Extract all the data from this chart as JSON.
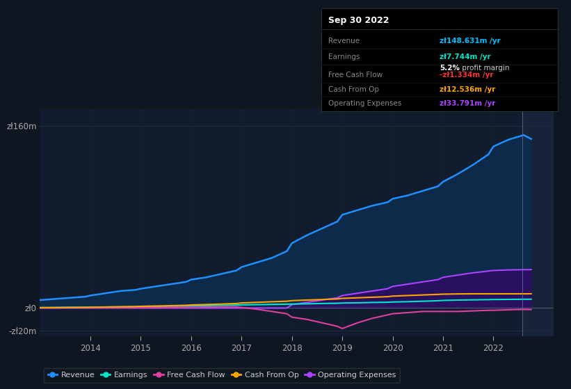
{
  "bg_color": "#0e1621",
  "plot_bg_color": "#0d1a2d",
  "chart_bg_color": "#111c2e",
  "ylim": [
    -25,
    175
  ],
  "xlim_start": 2013.0,
  "xlim_end": 2023.2,
  "xticks": [
    2014,
    2015,
    2016,
    2017,
    2018,
    2019,
    2020,
    2021,
    2022
  ],
  "ytick_vals": [
    -20,
    0,
    160
  ],
  "ytick_labels": [
    "-zł20m",
    "zł0",
    "zł160m"
  ],
  "legend": [
    {
      "label": "Revenue",
      "color": "#1e90ff"
    },
    {
      "label": "Earnings",
      "color": "#00e5cc"
    },
    {
      "label": "Free Cash Flow",
      "color": "#e040a0"
    },
    {
      "label": "Cash From Op",
      "color": "#ffa500"
    },
    {
      "label": "Operating Expenses",
      "color": "#aa44ff"
    }
  ],
  "series": {
    "years": [
      2013.0,
      2013.3,
      2013.6,
      2013.9,
      2014.0,
      2014.3,
      2014.6,
      2014.9,
      2015.0,
      2015.3,
      2015.6,
      2015.9,
      2016.0,
      2016.3,
      2016.6,
      2016.9,
      2017.0,
      2017.3,
      2017.6,
      2017.9,
      2018.0,
      2018.3,
      2018.6,
      2018.9,
      2019.0,
      2019.3,
      2019.6,
      2019.9,
      2020.0,
      2020.3,
      2020.6,
      2020.9,
      2021.0,
      2021.3,
      2021.6,
      2021.9,
      2022.0,
      2022.3,
      2022.6,
      2022.75
    ],
    "revenue": [
      7,
      8,
      9,
      10,
      11,
      13,
      15,
      16,
      17,
      19,
      21,
      23,
      25,
      27,
      30,
      33,
      36,
      40,
      44,
      50,
      57,
      64,
      70,
      76,
      82,
      86,
      90,
      93,
      96,
      99,
      103,
      107,
      111,
      118,
      126,
      135,
      142,
      148,
      152,
      148.631
    ],
    "earnings": [
      0.4,
      0.5,
      0.6,
      0.7,
      0.8,
      0.9,
      1.0,
      1.1,
      1.2,
      1.4,
      1.6,
      1.8,
      2.0,
      2.2,
      2.4,
      2.6,
      2.8,
      3.0,
      3.2,
      3.4,
      3.5,
      3.7,
      4.0,
      4.2,
      4.4,
      4.6,
      4.9,
      5.1,
      5.3,
      5.6,
      6.0,
      6.4,
      6.7,
      7.0,
      7.2,
      7.4,
      7.5,
      7.6,
      7.7,
      7.744
    ],
    "free_cash_flow": [
      0.2,
      0.2,
      0.3,
      0.3,
      0.3,
      0.4,
      0.4,
      0.4,
      0.5,
      0.5,
      0.6,
      0.6,
      0.7,
      0.8,
      0.9,
      1.0,
      0.5,
      -1.0,
      -3,
      -5,
      -8,
      -10,
      -13,
      -16,
      -18,
      -13,
      -9,
      -6,
      -5,
      -4,
      -3,
      -3,
      -3,
      -3,
      -2.5,
      -2,
      -2,
      -1.5,
      -1.2,
      -1.334
    ],
    "cash_from_op": [
      0.3,
      0.4,
      0.5,
      0.6,
      0.7,
      0.9,
      1.1,
      1.3,
      1.5,
      1.8,
      2.1,
      2.4,
      2.7,
      3.1,
      3.5,
      4.0,
      4.5,
      5.0,
      5.5,
      6.0,
      6.5,
      7.0,
      7.5,
      8.0,
      8.5,
      9.0,
      9.5,
      10.0,
      10.5,
      11.0,
      11.5,
      12.0,
      12.2,
      12.4,
      12.5,
      12.5,
      12.5,
      12.5,
      12.5,
      12.536
    ],
    "operating_expenses": [
      0.0,
      0.0,
      0.0,
      0.0,
      0.0,
      0.0,
      0.0,
      0.0,
      0.0,
      0.0,
      0.0,
      0.0,
      0.0,
      0.0,
      0.0,
      0.0,
      0.0,
      0.0,
      0.0,
      0.0,
      3.0,
      5.0,
      7.0,
      9.0,
      11.0,
      13.0,
      15.0,
      17.0,
      19.0,
      21.0,
      23.0,
      25.0,
      27.0,
      29.0,
      31.0,
      32.5,
      33.0,
      33.5,
      33.7,
      33.791
    ]
  }
}
